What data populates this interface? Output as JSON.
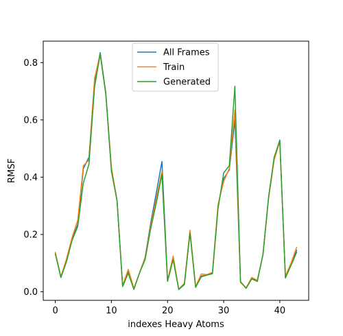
{
  "chart_data": {
    "type": "line",
    "title": "",
    "xlabel": "indexes Heavy Atoms",
    "ylabel": "RMSF",
    "xlim": [
      -2.15,
      45.15
    ],
    "ylim": [
      -0.03,
      0.875
    ],
    "xticks": [
      0,
      10,
      20,
      30,
      40
    ],
    "yticks": [
      0.0,
      0.2,
      0.4,
      0.6,
      0.8
    ],
    "grid": false,
    "legend_position": "top-center",
    "x": [
      0,
      1,
      2,
      3,
      4,
      5,
      6,
      7,
      8,
      9,
      10,
      11,
      12,
      13,
      14,
      15,
      16,
      17,
      18,
      19,
      20,
      21,
      22,
      23,
      24,
      25,
      26,
      27,
      28,
      29,
      30,
      31,
      32,
      33,
      34,
      35,
      36,
      37,
      38,
      39,
      40,
      41,
      42,
      43
    ],
    "series": [
      {
        "name": "All Frames",
        "color": "#1f77b4",
        "values": [
          0.135,
          0.05,
          0.11,
          0.185,
          0.235,
          0.43,
          0.47,
          0.735,
          0.835,
          0.695,
          0.43,
          0.32,
          0.02,
          0.07,
          0.01,
          0.065,
          0.12,
          0.24,
          0.345,
          0.455,
          0.04,
          0.115,
          0.008,
          0.025,
          0.21,
          0.018,
          0.055,
          0.058,
          0.065,
          0.3,
          0.395,
          0.425,
          0.6,
          0.035,
          0.013,
          0.045,
          0.04,
          0.13,
          0.33,
          0.465,
          0.53,
          0.05,
          0.095,
          0.145
        ]
      },
      {
        "name": "Train",
        "color": "#ff7f0e",
        "values": [
          0.138,
          0.052,
          0.115,
          0.19,
          0.25,
          0.44,
          0.46,
          0.745,
          0.83,
          0.69,
          0.435,
          0.318,
          0.022,
          0.078,
          0.012,
          0.065,
          0.118,
          0.23,
          0.325,
          0.42,
          0.038,
          0.125,
          0.009,
          0.03,
          0.215,
          0.018,
          0.062,
          0.06,
          0.068,
          0.305,
          0.385,
          0.43,
          0.635,
          0.032,
          0.014,
          0.05,
          0.04,
          0.128,
          0.325,
          0.46,
          0.525,
          0.055,
          0.1,
          0.155
        ]
      },
      {
        "name": "Generated",
        "color": "#2ca02c",
        "values": [
          0.133,
          0.05,
          0.105,
          0.18,
          0.228,
          0.38,
          0.445,
          0.715,
          0.83,
          0.69,
          0.42,
          0.318,
          0.018,
          0.065,
          0.008,
          0.065,
          0.112,
          0.22,
          0.31,
          0.41,
          0.036,
          0.112,
          0.008,
          0.026,
          0.205,
          0.015,
          0.052,
          0.058,
          0.063,
          0.29,
          0.415,
          0.44,
          0.718,
          0.035,
          0.012,
          0.045,
          0.036,
          0.13,
          0.33,
          0.47,
          0.528,
          0.048,
          0.092,
          0.138
        ]
      }
    ]
  }
}
